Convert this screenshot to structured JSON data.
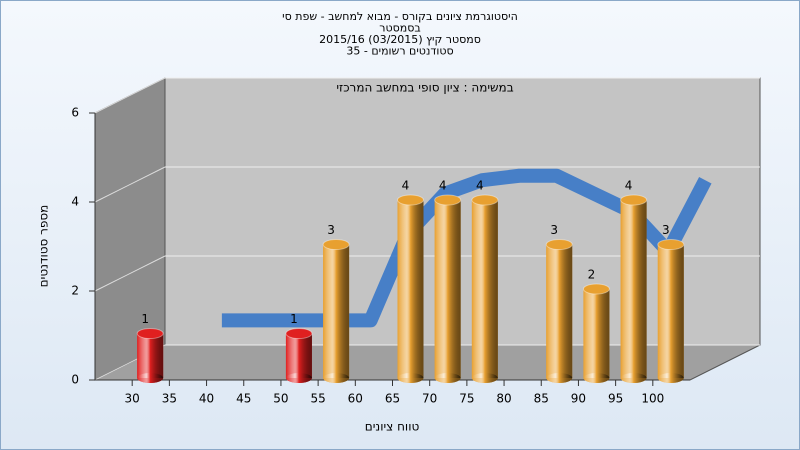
{
  "chart_data": {
    "type": "bar3d",
    "title": [
      "היסטוגרמת ציונים בקורס - מבוא למחשב - שפת סי",
      "בסמסטר",
      "סמסטר קיץ (03/2015) 2015/16",
      "סטודנטים רשומים - 35"
    ],
    "subtitle": "במשימה : ציון סופי במחשב המרכזי",
    "x_label": "טווח ציונים",
    "y_label": "מספר סטודנטים",
    "categories": [
      "30",
      "35",
      "40",
      "45",
      "50",
      "55",
      "60",
      "65",
      "70",
      "75",
      "80",
      "85",
      "90",
      "95",
      "100"
    ],
    "values": [
      1,
      0,
      0,
      0,
      1,
      3,
      0,
      4,
      4,
      4,
      0,
      3,
      2,
      4,
      3
    ],
    "colors": [
      "#e02020",
      "#e02020",
      "#e02020",
      "#e02020",
      "#e02020",
      "#e8a030",
      "#e8a030",
      "#e8a030",
      "#e8a030",
      "#e8a030",
      "#e8a030",
      "#e8a030",
      "#e8a030",
      "#e8a030",
      "#e8a030"
    ],
    "trend_values": [
      null,
      0.75,
      0.75,
      0.75,
      0.75,
      0.75,
      2.7,
      3.6,
      3.9,
      4.0,
      4.0,
      3.6,
      3.2,
      2.3,
      3.9
    ],
    "trend_color": "#3a78c8",
    "ylim": [
      0,
      6
    ],
    "yticks": [
      0,
      2,
      4,
      6
    ],
    "grid": true
  }
}
